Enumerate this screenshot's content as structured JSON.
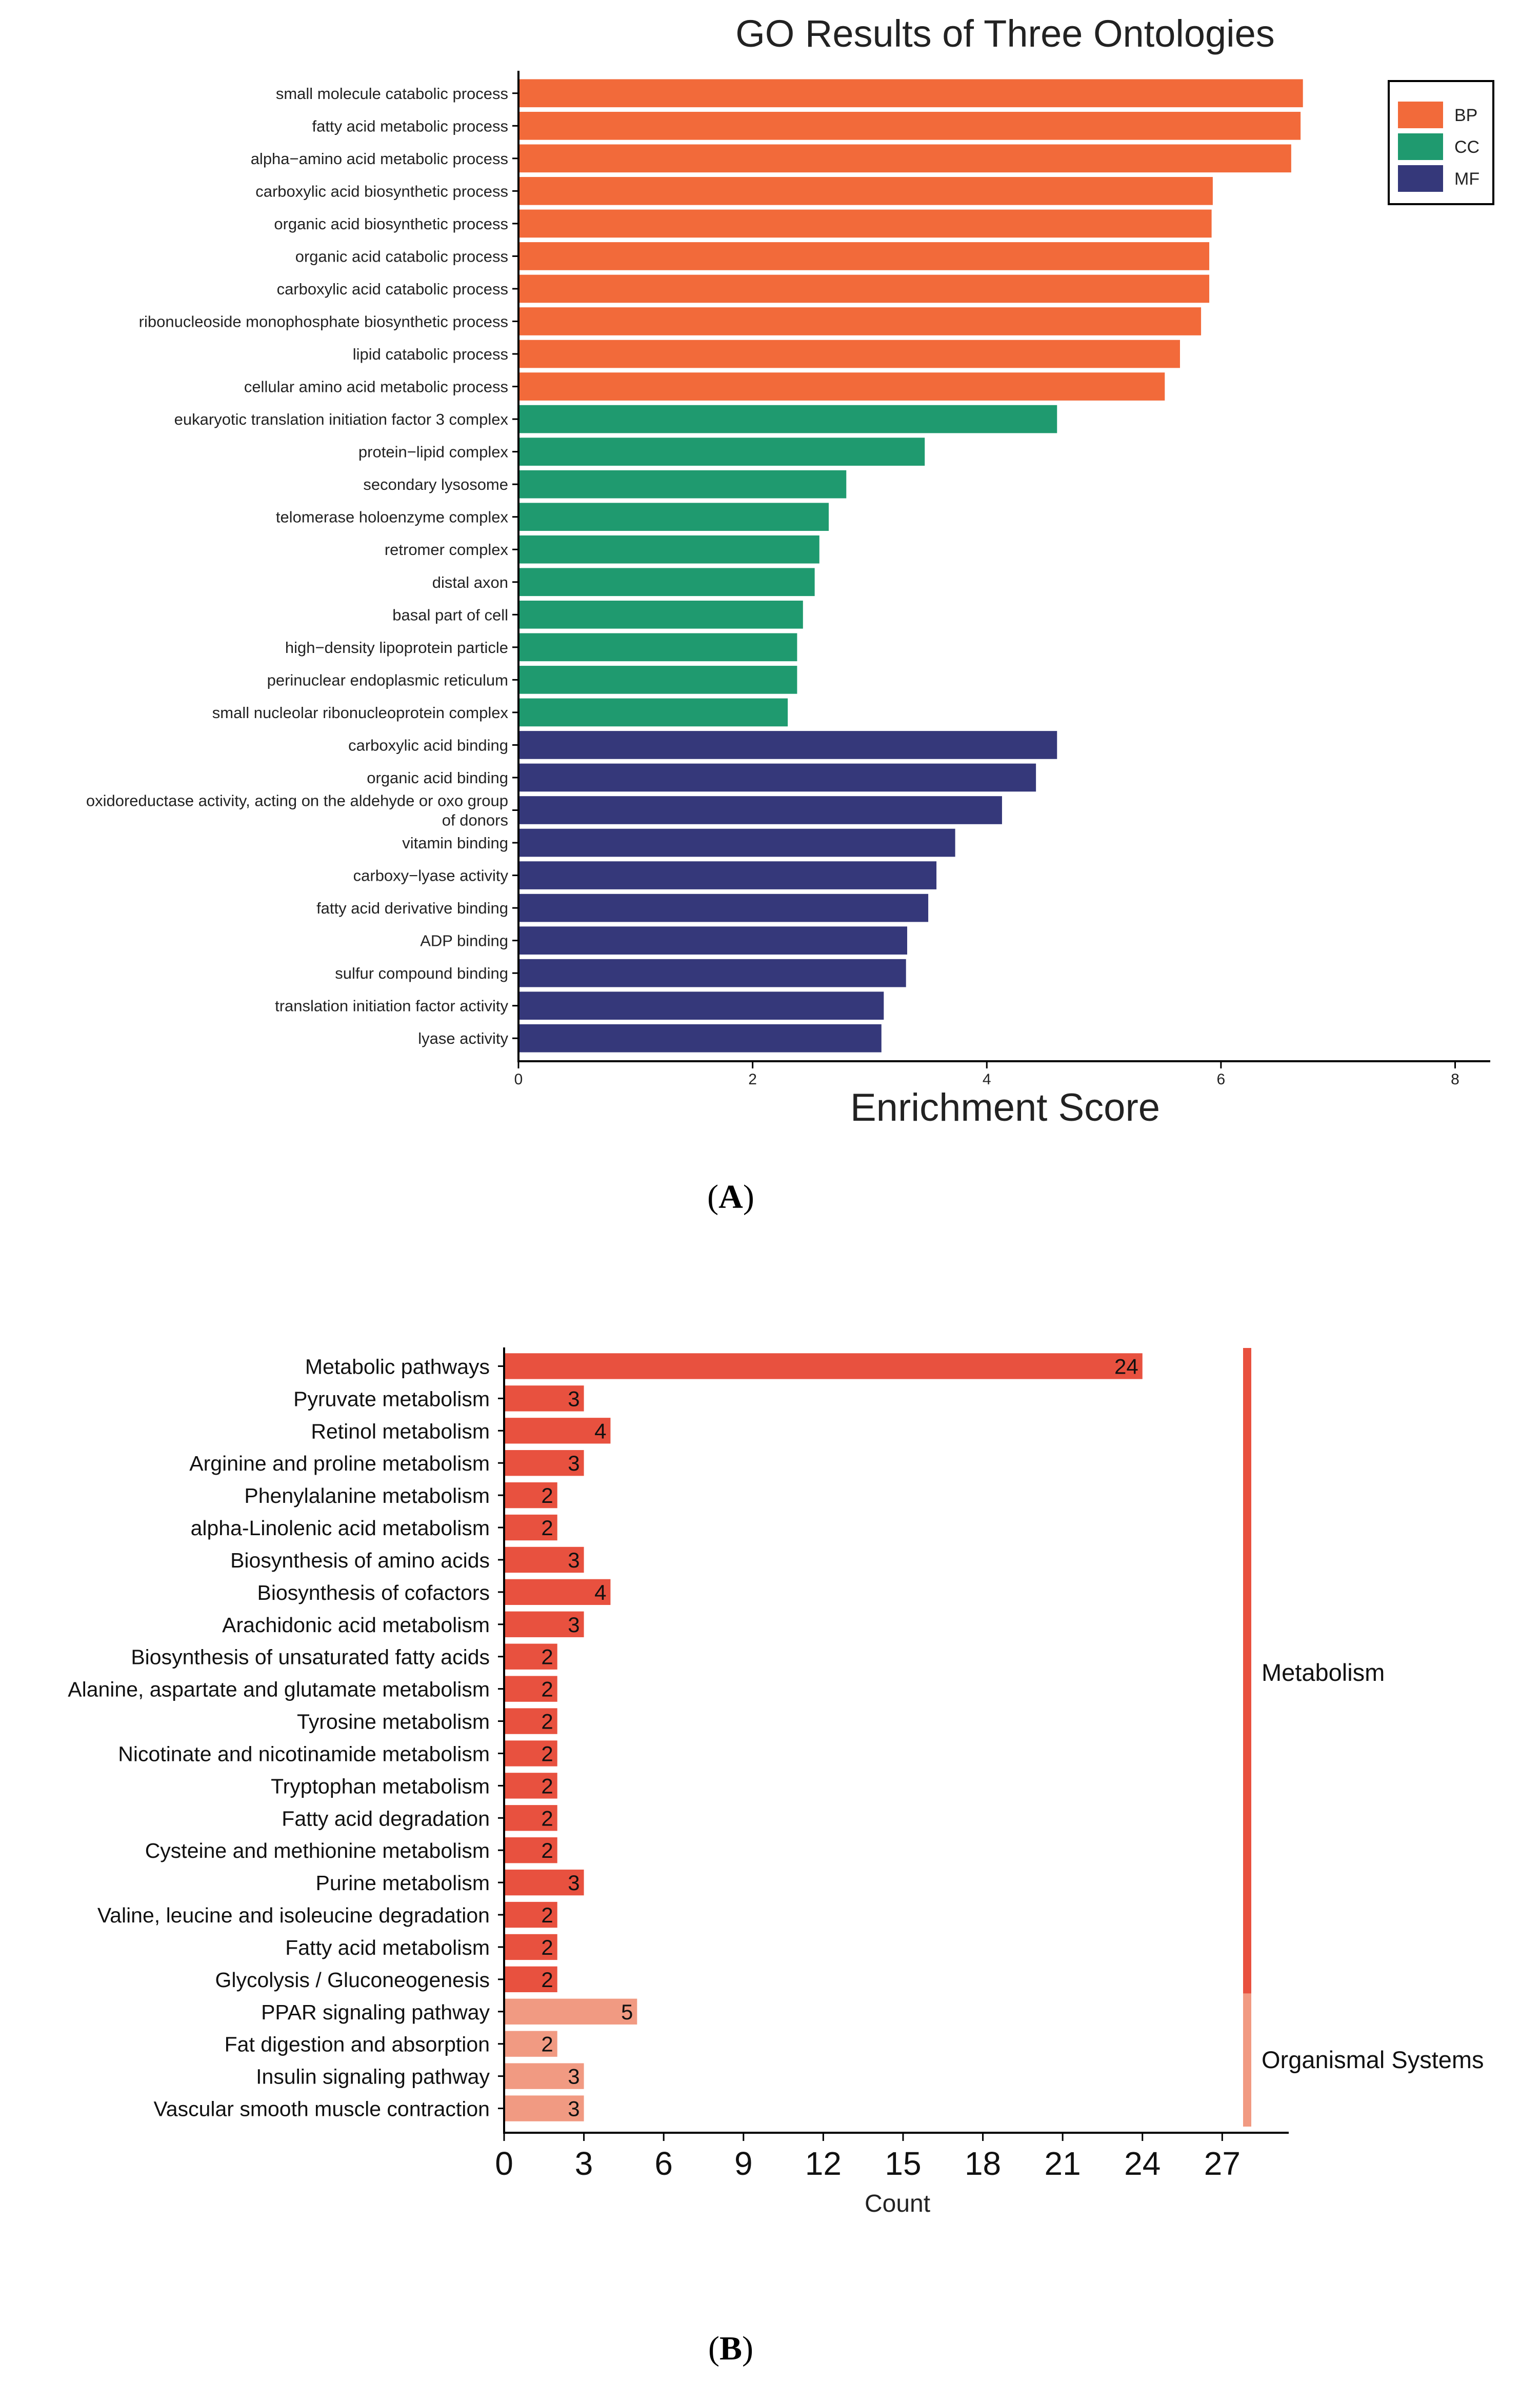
{
  "panel_a": {
    "panel_label": "A",
    "chart_data": {
      "type": "bar",
      "orientation": "horizontal",
      "title": "GO Results of Three Ontologies",
      "xlabel": "Enrichment Score",
      "ylabel": "",
      "xlim": [
        0,
        8.3
      ],
      "xticks": [
        0,
        2,
        4,
        6,
        8
      ],
      "legend": {
        "placement": "top-right",
        "entries": [
          {
            "name": "BP",
            "color": "#f26a3a"
          },
          {
            "name": "CC",
            "color": "#1f9a6f"
          },
          {
            "name": "MF",
            "color": "#35387a"
          }
        ]
      },
      "categories": [
        {
          "label": "small molecule catabolic process",
          "value": 6.7,
          "group": "BP"
        },
        {
          "label": "fatty acid metabolic process",
          "value": 6.68,
          "group": "BP"
        },
        {
          "label": "alpha−amino acid metabolic process",
          "value": 6.6,
          "group": "BP"
        },
        {
          "label": "carboxylic acid biosynthetic process",
          "value": 5.93,
          "group": "BP"
        },
        {
          "label": "organic acid biosynthetic process",
          "value": 5.92,
          "group": "BP"
        },
        {
          "label": "organic acid catabolic process",
          "value": 5.9,
          "group": "BP"
        },
        {
          "label": "carboxylic acid catabolic process",
          "value": 5.9,
          "group": "BP"
        },
        {
          "label": "ribonucleoside monophosphate biosynthetic process",
          "value": 5.83,
          "group": "BP"
        },
        {
          "label": "lipid catabolic process",
          "value": 5.65,
          "group": "BP"
        },
        {
          "label": "cellular amino acid metabolic process",
          "value": 5.52,
          "group": "BP"
        },
        {
          "label": "eukaryotic translation initiation factor 3 complex",
          "value": 4.6,
          "group": "CC"
        },
        {
          "label": "protein−lipid complex",
          "value": 3.47,
          "group": "CC"
        },
        {
          "label": "secondary lysosome",
          "value": 2.8,
          "group": "CC"
        },
        {
          "label": "telomerase holoenzyme complex",
          "value": 2.65,
          "group": "CC"
        },
        {
          "label": "retromer complex",
          "value": 2.57,
          "group": "CC"
        },
        {
          "label": "distal axon",
          "value": 2.53,
          "group": "CC"
        },
        {
          "label": "basal part of cell",
          "value": 2.43,
          "group": "CC"
        },
        {
          "label": "high−density lipoprotein particle",
          "value": 2.38,
          "group": "CC"
        },
        {
          "label": "perinuclear endoplasmic reticulum",
          "value": 2.38,
          "group": "CC"
        },
        {
          "label": "small nucleolar ribonucleoprotein complex",
          "value": 2.3,
          "group": "CC"
        },
        {
          "label": "carboxylic acid binding",
          "value": 4.6,
          "group": "MF"
        },
        {
          "label": "organic acid binding",
          "value": 4.42,
          "group": "MF"
        },
        {
          "label": "oxidoreductase activity, acting on the aldehyde or oxo group of donors",
          "label_lines": [
            "oxidoreductase activity, acting on the aldehyde or oxo group",
            "of donors"
          ],
          "value": 4.13,
          "group": "MF"
        },
        {
          "label": "vitamin binding",
          "value": 3.73,
          "group": "MF"
        },
        {
          "label": "carboxy−lyase activity",
          "value": 3.57,
          "group": "MF"
        },
        {
          "label": "fatty acid derivative binding",
          "value": 3.5,
          "group": "MF"
        },
        {
          "label": "ADP binding",
          "value": 3.32,
          "group": "MF"
        },
        {
          "label": "sulfur compound binding",
          "value": 3.31,
          "group": "MF"
        },
        {
          "label": "translation initiation factor activity",
          "value": 3.12,
          "group": "MF"
        },
        {
          "label": "lyase activity",
          "value": 3.1,
          "group": "MF"
        }
      ]
    }
  },
  "panel_b": {
    "panel_label": "B",
    "chart_data": {
      "type": "bar",
      "orientation": "horizontal",
      "title": "",
      "xlabel": "Count",
      "ylabel": "",
      "xlim": [
        0,
        29.5
      ],
      "xticks": [
        0,
        3,
        6,
        9,
        12,
        15,
        18,
        21,
        24,
        27
      ],
      "groups": [
        {
          "name": "Metabolism",
          "color": "#e8513f"
        },
        {
          "name": "Organismal Systems",
          "color": "#f19a82"
        }
      ],
      "categories": [
        {
          "label": "Metabolic pathways",
          "value": 24,
          "group": "Metabolism"
        },
        {
          "label": "Pyruvate metabolism",
          "value": 3,
          "group": "Metabolism"
        },
        {
          "label": "Retinol metabolism",
          "value": 4,
          "group": "Metabolism"
        },
        {
          "label": "Arginine and proline metabolism",
          "value": 3,
          "group": "Metabolism"
        },
        {
          "label": "Phenylalanine metabolism",
          "value": 2,
          "group": "Metabolism"
        },
        {
          "label": "alpha-Linolenic acid metabolism",
          "value": 2,
          "group": "Metabolism"
        },
        {
          "label": "Biosynthesis of amino acids",
          "value": 3,
          "group": "Metabolism"
        },
        {
          "label": "Biosynthesis of cofactors",
          "value": 4,
          "group": "Metabolism"
        },
        {
          "label": "Arachidonic acid metabolism",
          "value": 3,
          "group": "Metabolism"
        },
        {
          "label": "Biosynthesis of unsaturated fatty acids",
          "value": 2,
          "group": "Metabolism"
        },
        {
          "label": "Alanine, aspartate and glutamate metabolism",
          "value": 2,
          "group": "Metabolism"
        },
        {
          "label": "Tyrosine metabolism",
          "value": 2,
          "group": "Metabolism"
        },
        {
          "label": "Nicotinate and nicotinamide metabolism",
          "value": 2,
          "group": "Metabolism"
        },
        {
          "label": "Tryptophan metabolism",
          "value": 2,
          "group": "Metabolism"
        },
        {
          "label": "Fatty acid degradation",
          "value": 2,
          "group": "Metabolism"
        },
        {
          "label": "Cysteine and methionine metabolism",
          "value": 2,
          "group": "Metabolism"
        },
        {
          "label": "Purine metabolism",
          "value": 3,
          "group": "Metabolism"
        },
        {
          "label": "Valine, leucine and isoleucine degradation",
          "value": 2,
          "group": "Metabolism"
        },
        {
          "label": "Fatty acid metabolism",
          "value": 2,
          "group": "Metabolism"
        },
        {
          "label": "Glycolysis / Gluconeogenesis",
          "value": 2,
          "group": "Metabolism"
        },
        {
          "label": "PPAR signaling pathway",
          "value": 5,
          "group": "Organismal Systems"
        },
        {
          "label": "Fat digestion and absorption",
          "value": 2,
          "group": "Organismal Systems"
        },
        {
          "label": "Insulin signaling pathway",
          "value": 3,
          "group": "Organismal Systems"
        },
        {
          "label": "Vascular smooth muscle contraction",
          "value": 3,
          "group": "Organismal Systems"
        }
      ]
    }
  }
}
